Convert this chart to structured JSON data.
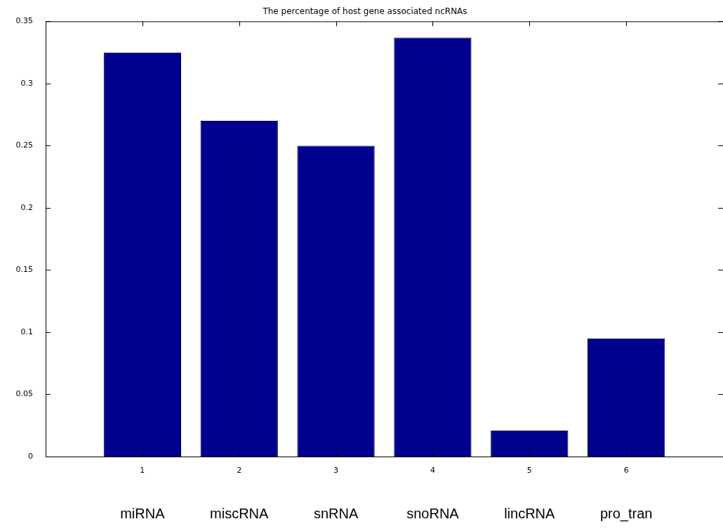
{
  "chart_data": {
    "type": "bar",
    "title": "The percentage of host gene associated ncRNAs",
    "x": [
      1,
      2,
      3,
      4,
      5,
      6
    ],
    "values": [
      0.325,
      0.27,
      0.25,
      0.337,
      0.021,
      0.095
    ],
    "color": "#00008f",
    "xlim": [
      0,
      7
    ],
    "xticks": [
      1,
      2,
      3,
      4,
      5,
      6
    ],
    "ylim": [
      0,
      0.35
    ],
    "yticks": [
      0,
      0.05,
      0.1,
      0.15,
      0.2,
      0.25,
      0.3,
      0.35
    ],
    "annotations": [
      "miRNA",
      "miscRNA",
      "snRNA",
      "snoRNA",
      "lincRNA",
      "pro_tran"
    ]
  }
}
